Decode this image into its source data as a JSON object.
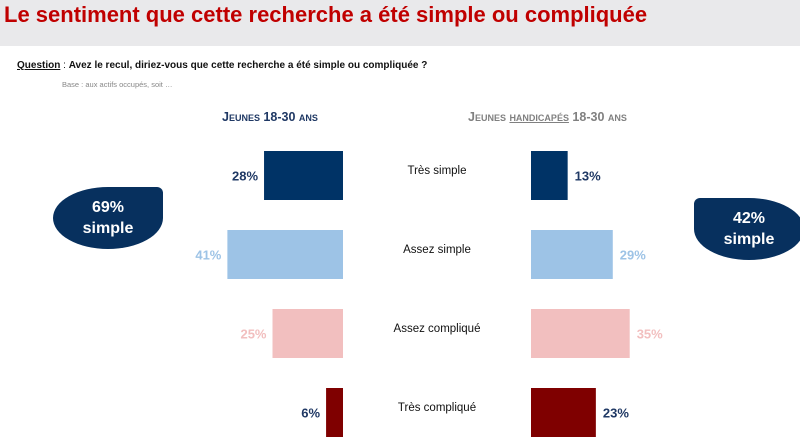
{
  "header": {
    "title": "Le sentiment que cette recherche a été simple ou compliquée"
  },
  "question": {
    "label": "Question",
    "separator": " : ",
    "text": "Avez le recul, diriez-vous que cette recherche a été simple ou compliquée ?",
    "base": "Base : aux actifs occupés, soit …"
  },
  "panels": {
    "left_title": "Jeunes 18-30 ans",
    "right_title_pre": "Jeunes ",
    "right_title_ul": "handicapés",
    "right_title_post": " 18-30 ans"
  },
  "bubbles": {
    "left_value": "69%",
    "left_label": "simple",
    "right_value": "42%",
    "right_label": "simple"
  },
  "chart_data": {
    "type": "bar",
    "categories": [
      "Très simple",
      "Assez simple",
      "Assez compliqué",
      "Très compliqué"
    ],
    "series": [
      {
        "name": "Jeunes 18-30 ans",
        "values": [
          28,
          41,
          25,
          6
        ]
      },
      {
        "name": "Jeunes handicapés 18-30 ans",
        "values": [
          13,
          29,
          35,
          23
        ]
      }
    ],
    "value_labels": [
      [
        "28%",
        "41%",
        "25%",
        "6%"
      ],
      [
        "13%",
        "29%",
        "35%",
        "23%"
      ]
    ],
    "colors": [
      "#003366",
      "#9dc3e6",
      "#f2bfbf",
      "#7f0000"
    ],
    "label_colors": [
      "#1f3864",
      "#9dc3e6",
      "#f2bfbf",
      "#1f3864"
    ],
    "orientation": "horizontal-butterfly"
  }
}
